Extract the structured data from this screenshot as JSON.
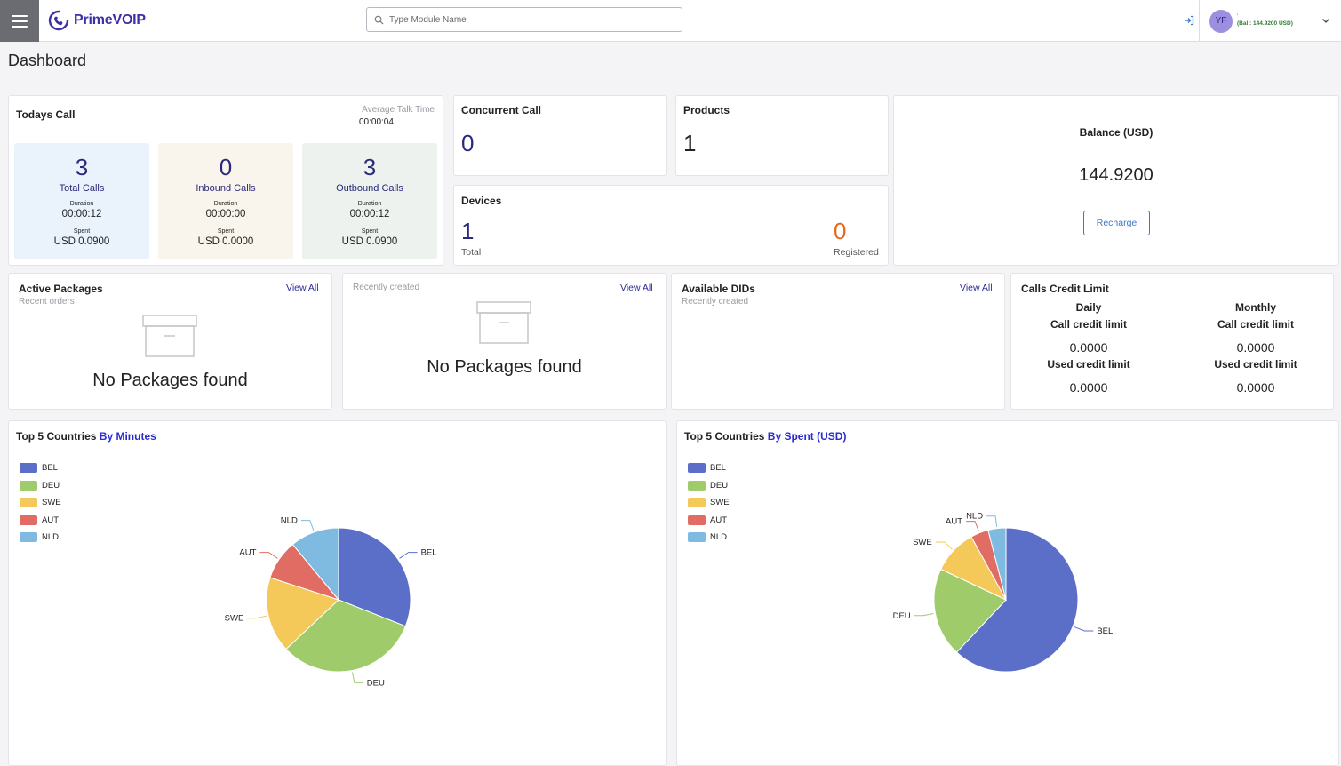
{
  "header": {
    "logo_text": "PrimeVOIP",
    "search_placeholder": "Type Module Name",
    "user_initials": "YF",
    "user_name": "'",
    "balance_text": "(Bal : 144.9200 USD)"
  },
  "page_title": "Dashboard",
  "todays_call": {
    "title": "Todays Call",
    "avg_talk_label": "Average Talk Time",
    "avg_talk_value": "00:00:04",
    "duration_label": "Duration",
    "spent_label": "Spent",
    "boxes": [
      {
        "value": "3",
        "label": "Total Calls",
        "duration": "00:00:12",
        "spent": "USD 0.0900"
      },
      {
        "value": "0",
        "label": "Inbound Calls",
        "duration": "00:00:00",
        "spent": "USD 0.0000"
      },
      {
        "value": "3",
        "label": "Outbound Calls",
        "duration": "00:00:12",
        "spent": "USD 0.0900"
      }
    ]
  },
  "concurrent_call": {
    "title": "Concurrent Call",
    "value": "0"
  },
  "products": {
    "title": "Products",
    "value": "1"
  },
  "devices": {
    "title": "Devices",
    "total_value": "1",
    "total_label": "Total",
    "registered_value": "0",
    "registered_label": "Registered"
  },
  "balance": {
    "title": "Balance (USD)",
    "value": "144.9200",
    "button": "Recharge"
  },
  "active_packages": {
    "title": "Active Packages",
    "subtitle": "Recent orders",
    "view_all": "View All",
    "empty": "No Packages found"
  },
  "recent_packages": {
    "subtitle": "Recently created",
    "view_all": "View All",
    "empty": "No Packages found"
  },
  "available_dids": {
    "title": "Available DIDs",
    "subtitle": "Recently created",
    "view_all": "View All"
  },
  "credit_limit": {
    "title": "Calls Credit Limit",
    "daily": {
      "h1": "Daily",
      "h2": "Call credit limit",
      "limit": "0.0000",
      "used_label": "Used credit limit",
      "used": "0.0000"
    },
    "monthly": {
      "h1": "Monthly",
      "h2": "Call credit limit",
      "limit": "0.0000",
      "used_label": "Used credit limit",
      "used": "0.0000"
    }
  },
  "colors": {
    "BEL": "#5b6fc9",
    "DEU": "#9fcb6b",
    "SWE": "#f4c95a",
    "AUT": "#e06c63",
    "NLD": "#7fbbe0"
  },
  "chart_data": [
    {
      "type": "pie",
      "title_prefix": "Top 5 Countries",
      "title_accent": "By Minutes",
      "legend_position": "top-left",
      "categories": [
        "BEL",
        "DEU",
        "SWE",
        "AUT",
        "NLD"
      ],
      "values": [
        31,
        32,
        17,
        9,
        11
      ]
    },
    {
      "type": "pie",
      "title_prefix": "Top 5 Countries",
      "title_accent": "By Spent (USD)",
      "legend_position": "top-left",
      "categories": [
        "BEL",
        "DEU",
        "SWE",
        "AUT",
        "NLD"
      ],
      "values": [
        62,
        20,
        10,
        4,
        4
      ]
    }
  ]
}
